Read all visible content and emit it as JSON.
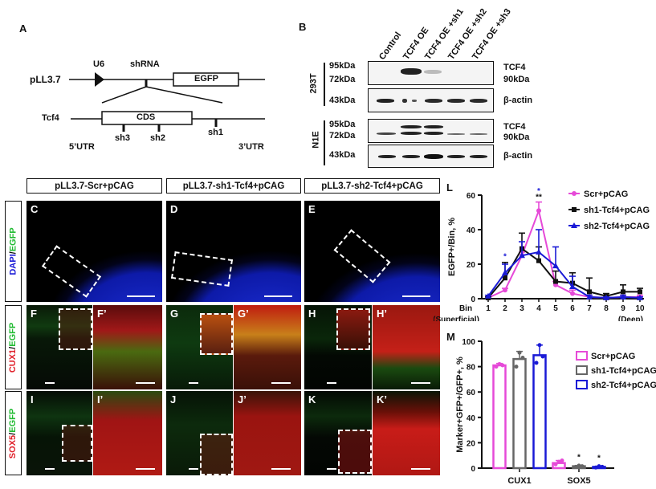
{
  "panels": {
    "A": {
      "label": "A",
      "vector_name": "pLL3.7",
      "promoter": "U6",
      "insert": "shRNA",
      "reporter": "EGFP",
      "gene": "Tcf4",
      "cds": "CDS",
      "sites": [
        "sh3",
        "sh2",
        "sh1"
      ],
      "utr5": "5’UTR",
      "utr3": "3’UTR"
    },
    "B": {
      "label": "B",
      "lanes": [
        "Control",
        "TCF4 OE",
        "TCF4 OE +sh1",
        "TCF4 OE +sh2",
        "TCF4 OE +sh3"
      ],
      "cell_lines": [
        "293T",
        "N1E"
      ],
      "mw_top": [
        "95kDa",
        "72kDa"
      ],
      "mw_actin": "43kDa",
      "target_label": "TCF4",
      "target_mw": "90kDa",
      "loading_label": "β-actin"
    },
    "images": {
      "column_headers": [
        "pLL3.7-Scr+pCAG",
        "pLL3.7-sh1-Tcf4+pCAG",
        "pLL3.7-sh2-Tcf4+pCAG"
      ],
      "row_labels": {
        "row1": {
          "a": "DAPI",
          "sep": "/",
          "b": "EGFP"
        },
        "row2": {
          "a": "CUX1",
          "sep": "/",
          "b": "EGFP"
        },
        "row3": {
          "a": "SOX5",
          "sep": "/",
          "b": "EGFP"
        }
      },
      "row1_letters": [
        "C",
        "D",
        "E"
      ],
      "row2_letters": [
        "F",
        "F’",
        "G",
        "G’",
        "H",
        "H’"
      ],
      "row3_letters": [
        "I",
        "I’",
        "J",
        "J’",
        "K",
        "K’"
      ]
    },
    "L": {
      "label": "L"
    },
    "M": {
      "label": "M"
    }
  },
  "colors": {
    "scr": "#e64ad8",
    "sh1": "#111111",
    "sh2": "#1a1ad6",
    "dapi": "#0a1ecf",
    "egfp": "#22dd33",
    "marker_red": "#e0202a"
  },
  "chart_data": [
    {
      "type": "line",
      "title": "",
      "panel": "L",
      "xlabel": "Bin",
      "x_left_note": "(Superficial)",
      "x_right_note": "(Deep)",
      "ylabel": "EGFP+/Bin, %",
      "x": [
        1,
        2,
        3,
        4,
        5,
        6,
        7,
        8,
        9,
        10
      ],
      "yticks": [
        0,
        20,
        40,
        60
      ],
      "ylim": [
        0,
        60
      ],
      "legend_position": "upper right",
      "series": [
        {
          "name": "Scr+pCAG",
          "values": [
            0.5,
            5,
            25,
            51,
            8,
            3,
            1,
            0.5,
            1,
            1
          ],
          "errors": [
            0.5,
            1,
            2,
            5,
            2,
            2,
            1,
            0.5,
            1,
            1
          ]
        },
        {
          "name": "sh1-Tcf4+pCAG",
          "values": [
            0.5,
            12,
            29,
            22,
            10,
            9,
            4,
            1.5,
            4,
            4
          ],
          "errors": [
            0.5,
            9,
            9,
            8,
            6,
            6,
            8,
            1.5,
            4,
            2
          ]
        },
        {
          "name": "sh2-Tcf4+pCAG",
          "values": [
            1.5,
            15,
            25,
            27,
            19,
            7,
            1,
            0.5,
            1,
            0.5
          ],
          "errors": [
            0.5,
            5,
            8,
            13,
            11,
            6,
            1,
            0.5,
            1,
            0.5
          ]
        }
      ],
      "annotations": [
        {
          "x": 2,
          "text": "*",
          "color": "#1a1ad6"
        },
        {
          "x": 4,
          "text": "*",
          "color": "#1a1ad6"
        },
        {
          "x": 4,
          "text": "**",
          "color": "#111111"
        }
      ]
    },
    {
      "type": "bar",
      "title": "",
      "panel": "M",
      "categories": [
        "CUX1",
        "SOX5"
      ],
      "ylabel": "Marker+GFP+/GFP+, %",
      "xlabel": "",
      "yticks": [
        0,
        20,
        40,
        60,
        80,
        100
      ],
      "ylim": [
        0,
        100
      ],
      "legend_position": "right",
      "series": [
        {
          "name": "Scr+pCAG",
          "values": [
            81,
            4
          ],
          "errors": [
            1.5,
            2
          ],
          "points": [
            [
              80,
              82,
              81
            ],
            [
              3,
              5,
              6
            ]
          ]
        },
        {
          "name": "sh1-Tcf4+pCAG",
          "values": [
            86,
            1.5
          ],
          "errors": [
            6,
            0.5
          ],
          "points": [
            [
              80,
              91,
              87
            ],
            [
              1,
              2,
              1.5
            ]
          ]
        },
        {
          "name": "sh2-Tcf4+pCAG",
          "values": [
            89,
            1
          ],
          "errors": [
            8,
            0.5
          ],
          "points": [
            [
              83,
              97,
              88
            ],
            [
              0.5,
              1.5,
              1
            ]
          ]
        }
      ],
      "annotations": [
        {
          "category": "SOX5",
          "series": "sh1-Tcf4+pCAG",
          "text": "*"
        },
        {
          "category": "SOX5",
          "series": "sh2-Tcf4+pCAG",
          "text": "*"
        }
      ]
    }
  ]
}
